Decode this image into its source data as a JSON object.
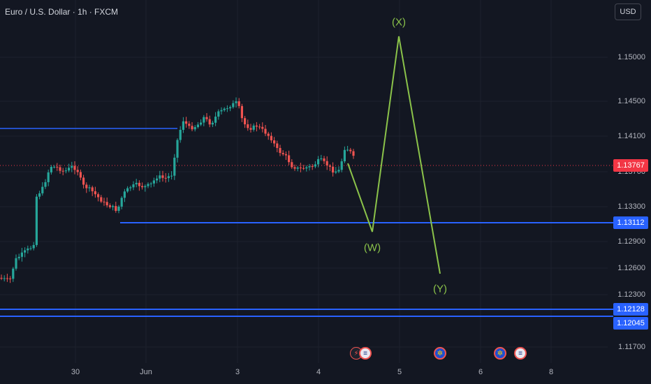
{
  "header": {
    "symbol_title": "Euro / U.S. Dollar · 1h · FXCM",
    "currency_label": "USD"
  },
  "price_axis": {
    "ticks": [
      "1.15000",
      "1.14500",
      "1.14100",
      "1.13700",
      "1.13300",
      "1.12900",
      "1.12600",
      "1.12300",
      "1.11700"
    ],
    "current_price": "1.13767",
    "levels": [
      "1.13112",
      "1.12128",
      "1.12045"
    ]
  },
  "time_axis": {
    "labels": [
      "30",
      "Jun",
      "3",
      "4",
      "5",
      "6",
      "8"
    ]
  },
  "waves": {
    "labels": [
      "(X)",
      "(W)",
      "(Y)"
    ]
  },
  "colors": {
    "background": "#131722",
    "bull": "#26a69a",
    "bear": "#ef5350",
    "level_line": "#2962ff",
    "wave": "#8bc34a",
    "current_badge": "#f23645"
  },
  "events": [
    {
      "icon": "lightning-icon"
    },
    {
      "icon": "us-flag-icon"
    },
    {
      "icon": "eu-flag-icon"
    },
    {
      "icon": "eu-flag-icon"
    },
    {
      "icon": "us-flag-icon"
    }
  ]
}
